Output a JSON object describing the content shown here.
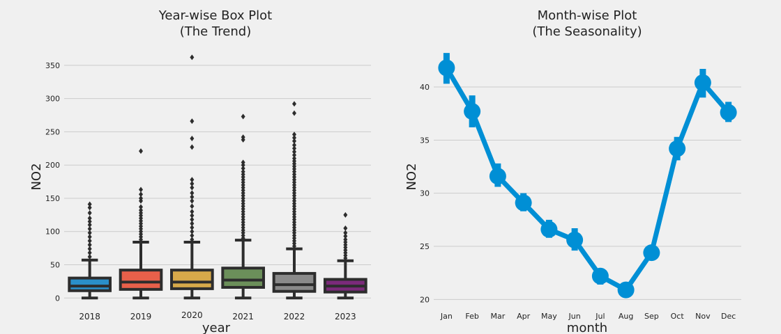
{
  "chart_data": [
    {
      "type": "box",
      "title_lines": [
        "Year-wise Box Plot",
        "(The Trend)"
      ],
      "xlabel": "year",
      "ylabel": "NO2",
      "ylim": [
        -6,
        375
      ],
      "yticks": [
        0,
        50,
        100,
        150,
        200,
        250,
        300,
        350
      ],
      "grid": true,
      "categories": [
        "2018",
        "2019",
        "2020",
        "2021",
        "2022",
        "2023"
      ],
      "boxes": [
        {
          "q1": 11,
          "median": 18,
          "q3": 30,
          "whisker_low": 0,
          "whisker_high": 57,
          "color": "#2a8fc9",
          "outliers": [
            62,
            68,
            74,
            80,
            86,
            92,
            98,
            104,
            110,
            115,
            120,
            128,
            136,
            141
          ]
        },
        {
          "q1": 13,
          "median": 24,
          "q3": 42,
          "whisker_low": 0,
          "whisker_high": 84,
          "color": "#e8604a",
          "outliers": [
            88,
            92,
            96,
            100,
            104,
            108,
            112,
            116,
            120,
            124,
            128,
            132,
            137,
            146,
            150,
            156,
            163,
            221
          ]
        },
        {
          "q1": 14,
          "median": 24,
          "q3": 42,
          "whisker_low": 0,
          "whisker_high": 84,
          "color": "#d7a94a",
          "outliers": [
            88,
            94,
            100,
            106,
            112,
            118,
            124,
            130,
            138,
            146,
            152,
            158,
            166,
            172,
            178,
            227,
            240,
            266,
            362
          ]
        },
        {
          "q1": 16,
          "median": 27,
          "q3": 45,
          "whisker_low": 0,
          "whisker_high": 87,
          "color": "#6b8f5a",
          "outliers": [
            90,
            94,
            98,
            102,
            106,
            110,
            114,
            118,
            122,
            126,
            130,
            134,
            138,
            142,
            146,
            150,
            154,
            158,
            162,
            166,
            170,
            174,
            178,
            182,
            186,
            190,
            195,
            200,
            204,
            238,
            242,
            273
          ]
        },
        {
          "q1": 10,
          "median": 20,
          "q3": 37,
          "whisker_low": 0,
          "whisker_high": 74,
          "color": "#8a8a8a",
          "outliers": [
            78,
            82,
            86,
            90,
            94,
            98,
            102,
            106,
            110,
            114,
            118,
            122,
            126,
            130,
            134,
            138,
            142,
            146,
            150,
            154,
            158,
            162,
            166,
            170,
            174,
            178,
            182,
            186,
            190,
            194,
            198,
            202,
            206,
            210,
            215,
            220,
            225,
            230,
            236,
            241,
            246,
            278,
            292
          ]
        },
        {
          "q1": 9,
          "median": 18,
          "q3": 28,
          "whisker_low": 0,
          "whisker_high": 56,
          "color": "#7b2a7a",
          "outliers": [
            60,
            64,
            68,
            72,
            76,
            80,
            84,
            88,
            93,
            98,
            105,
            125
          ]
        }
      ]
    },
    {
      "type": "point",
      "title_lines": [
        "Month-wise Plot",
        "(The Seasonality)"
      ],
      "xlabel": "month",
      "ylabel": "NO2",
      "ylim": [
        19.5,
        43.6
      ],
      "yticks": [
        20,
        25,
        30,
        35,
        40
      ],
      "grid": true,
      "color": "#008fd5",
      "categories": [
        "Jan",
        "Feb",
        "Mar",
        "Apr",
        "May",
        "Jun",
        "Jul",
        "Aug",
        "Sep",
        "Oct",
        "Nov",
        "Dec"
      ],
      "values": [
        41.8,
        37.7,
        31.6,
        29.1,
        26.6,
        25.6,
        22.2,
        20.9,
        24.4,
        34.2,
        40.4,
        37.6
      ],
      "ci_low": [
        40.3,
        36.2,
        30.6,
        28.3,
        25.8,
        24.6,
        21.4,
        20.4,
        23.7,
        33.1,
        39.0,
        36.7
      ],
      "ci_high": [
        43.2,
        39.2,
        32.8,
        30.0,
        27.5,
        26.7,
        22.9,
        21.4,
        25.1,
        35.3,
        41.7,
        38.6
      ]
    }
  ]
}
